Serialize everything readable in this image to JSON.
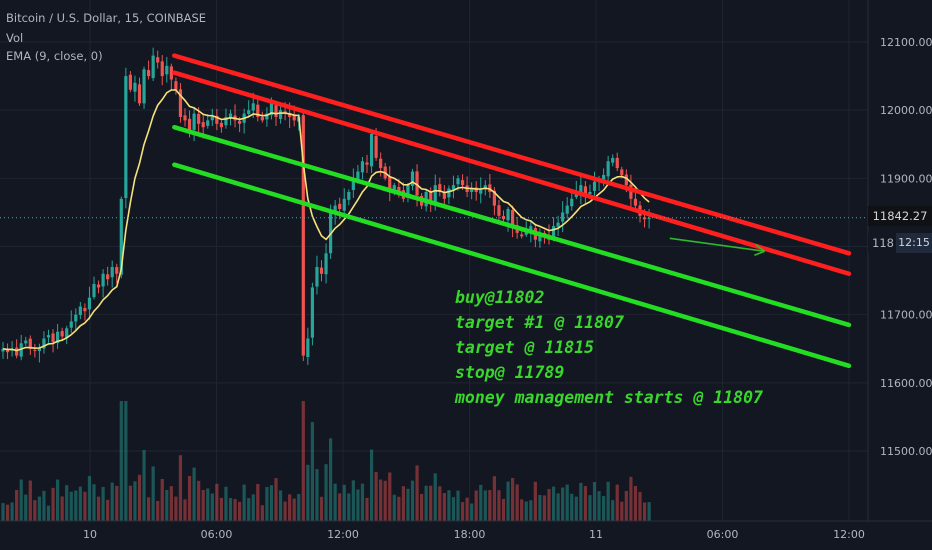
{
  "header": {
    "symbol_title": "Bitcoin / U.S. Dollar, 15, COINBASE",
    "vol_label": "Vol",
    "ema_label": "EMA (9, close, 0)"
  },
  "colors": {
    "background": "#131722",
    "grid": "#1f2431",
    "up_candle": "#26a69a",
    "down_candle": "#ef5350",
    "ema": "#f5e27a",
    "resistance": "#ff1f1f",
    "support": "#22dd22",
    "arrow": "#2eb82e",
    "note_text": "#39d62c",
    "price_line": "#3fb6b6"
  },
  "chart_data": {
    "type": "candlestick",
    "instrument": "Bitcoin / U.S. Dollar",
    "interval": "15",
    "exchange": "COINBASE",
    "y_ticks": [
      12100,
      12000,
      11900,
      11800,
      11700,
      11600,
      11500
    ],
    "y_tick_labels": [
      "12100.00",
      "12000.00",
      "11900.00",
      "11800.00",
      "11700.00",
      "11600.00",
      "11500.00"
    ],
    "x_ticks": [
      "10",
      "06:00",
      "12:00",
      "18:00",
      "11",
      "06:00",
      "12:00"
    ],
    "current_price": 11842.27,
    "current_price_label": "11842.27",
    "countdown_label": "12:15",
    "price_axis_partial_label": "118",
    "close_series": [
      11650,
      11645,
      11650,
      11640,
      11658,
      11662,
      11650,
      11648,
      11652,
      11665,
      11670,
      11660,
      11675,
      11668,
      11680,
      11690,
      11700,
      11712,
      11705,
      11725,
      11745,
      11740,
      11760,
      11752,
      11770,
      11760,
      11870,
      12050,
      12030,
      12040,
      12010,
      12060,
      12050,
      12080,
      12070,
      12050,
      12065,
      12045,
      12030,
      11990,
      11985,
      11970,
      11995,
      11980,
      11975,
      11985,
      11990,
      11980,
      11975,
      11990,
      11995,
      11985,
      11980,
      11995,
      12000,
      12010,
      11990,
      11985,
      11995,
      12010,
      11990,
      12000,
      11995,
      11990,
      11985,
      11990,
      11640,
      11665,
      11740,
      11770,
      11760,
      11790,
      11850,
      11860,
      11855,
      11870,
      11880,
      11900,
      11910,
      11925,
      11920,
      11965,
      11930,
      11915,
      11900,
      11880,
      11890,
      11880,
      11870,
      11890,
      11910,
      11875,
      11860,
      11880,
      11865,
      11890,
      11880,
      11870,
      11885,
      11890,
      11900,
      11890,
      11880,
      11885,
      11880,
      11885,
      11890,
      11880,
      11860,
      11845,
      11840,
      11855,
      11830,
      11820,
      11815,
      11825,
      11830,
      11810,
      11820,
      11815,
      11810,
      11830,
      11835,
      11850,
      11860,
      11870,
      11880,
      11890,
      11875,
      11880,
      11895,
      11900,
      11905,
      11925,
      11930,
      11915,
      11905,
      11890,
      11870,
      11860,
      11845,
      11840,
      11842
    ],
    "ema_period": 9,
    "trendlines": [
      {
        "name": "resistance-upper",
        "color": "red",
        "from": [
          12080,
          "10 04:00"
        ],
        "to": [
          11790,
          "11 12:00"
        ]
      },
      {
        "name": "resistance-lower",
        "color": "red",
        "from": [
          12055,
          "10 04:00"
        ],
        "to": [
          11760,
          "11 12:00"
        ]
      },
      {
        "name": "support-upper",
        "color": "green",
        "from": [
          11975,
          "10 04:00"
        ],
        "to": [
          11685,
          "11 12:00"
        ]
      },
      {
        "name": "support-lower",
        "color": "green",
        "from": [
          11920,
          "10 04:00"
        ],
        "to": [
          11625,
          "11 12:00"
        ]
      }
    ],
    "arrow": {
      "from": [
        11812,
        "11 03:30"
      ],
      "to": [
        11793,
        "11 08:00"
      ]
    },
    "annotations": [
      "buy@11802",
      "target #1 @ 11807",
      "target @ 11815",
      "stop@ 11789",
      "money management starts @ 11807"
    ]
  }
}
